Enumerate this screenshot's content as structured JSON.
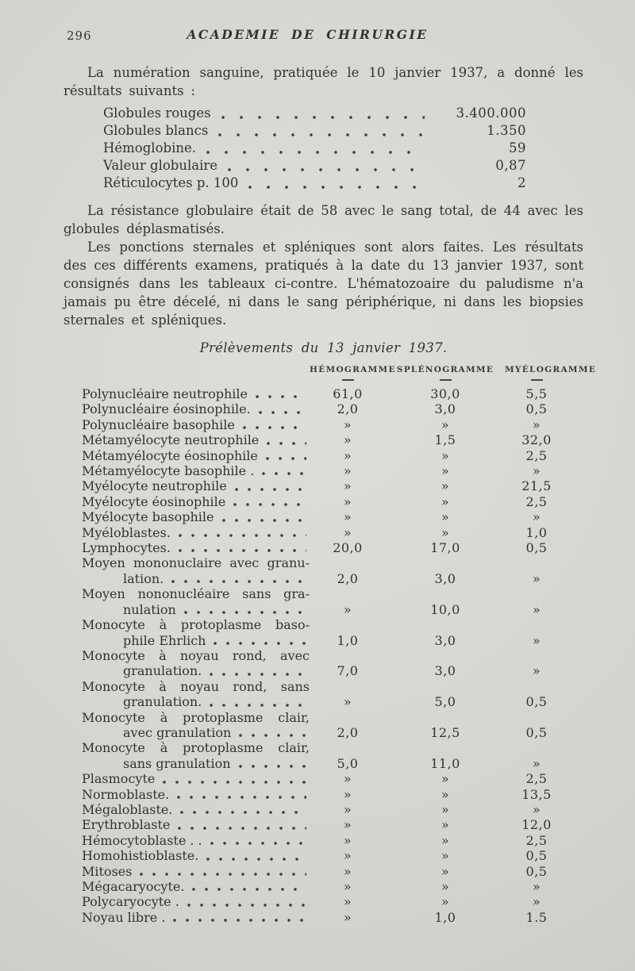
{
  "header": {
    "page_number": "296",
    "journal_title": "ACADEMIE DE CHIRURGIE"
  },
  "paragraphs": {
    "intro": "La numération sanguine, pratiquée le 10 janvier 1937, a donné les résultats suivants :",
    "resistance": "La résistance globulaire était de 58 avec le sang total, de 44 avec les globules déplasmatisés.",
    "punctions": "Les ponctions sternales et spléniques sont alors faites. Les résultats des ces différents examens, pratiqués à la date du 13 janvier 1937, sont consignés dans les tableaux ci-contre. L'hématozoaire du paludisme n'a jamais pu être décelé, ni dans le sang périphérique, ni dans les biopsies sternales et spléniques."
  },
  "blood_counts": {
    "items": [
      {
        "label": "Globules rouges",
        "value": "3.400.000"
      },
      {
        "label": "Globules blancs",
        "value": "1.350"
      },
      {
        "label": "Hémoglobine.",
        "value": "59"
      },
      {
        "label": "Valeur globulaire",
        "value": "0,87"
      },
      {
        "label": "Réticulocytes p. 100",
        "value": "2"
      }
    ]
  },
  "table": {
    "title": "Prélèvements du 13 janvier 1937.",
    "columns": [
      "HÉMOGRAMME",
      "SPLÉNOGRAMME",
      "MYÉLOGRAMME"
    ],
    "empty_mark": "»",
    "rows": [
      {
        "label": "Polynucléaire neutrophile",
        "values": [
          "61,0",
          "30,0",
          "5,5"
        ]
      },
      {
        "label": "Polynucléaire éosinophile.",
        "values": [
          "2,0",
          "3,0",
          "0,5"
        ]
      },
      {
        "label": "Polynucléaire basophile",
        "values": [
          "»",
          "»",
          "»"
        ]
      },
      {
        "label": "Métamyélocyte neutrophile",
        "values": [
          "»",
          "1,5",
          "32,0"
        ]
      },
      {
        "label": "Métamyélocyte éosinophile",
        "values": [
          "»",
          "»",
          "2,5"
        ]
      },
      {
        "label": "Métamyélocyte basophile .",
        "values": [
          "»",
          "»",
          "»"
        ]
      },
      {
        "label": "Myélocyte neutrophile",
        "values": [
          "»",
          "»",
          "21,5"
        ]
      },
      {
        "label": "Myélocyte éosinophile",
        "values": [
          "»",
          "»",
          "2,5"
        ]
      },
      {
        "label": "Myélocyte basophile",
        "values": [
          "»",
          "»",
          "»"
        ]
      },
      {
        "label": "Myéloblastes.",
        "values": [
          "»",
          "»",
          "1,0"
        ]
      },
      {
        "label": "Lymphocytes.",
        "values": [
          "20,0",
          "17,0",
          "0,5"
        ]
      },
      {
        "label": "Moyen mononuclaire avec granu-",
        "label2": "lation.",
        "values": [
          "2,0",
          "3,0",
          "»"
        ]
      },
      {
        "label": "Moyen nononucléaire sans gra-",
        "label2": "nulation",
        "values": [
          "»",
          "10,0",
          "»"
        ]
      },
      {
        "label": "Monocyte à protoplasme baso-",
        "label2": "phile Ehrlich",
        "values": [
          "1,0",
          "3,0",
          "»"
        ]
      },
      {
        "label": "Monocyte à noyau rond, avec",
        "label2": "granulation.",
        "values": [
          "7,0",
          "3,0",
          "»"
        ]
      },
      {
        "label": "Monocyte à noyau rond, sans",
        "label2": "granulation.",
        "values": [
          "»",
          "5,0",
          "0,5"
        ]
      },
      {
        "label": "Monocyte à protoplasme clair,",
        "label2": "avec granulation",
        "values": [
          "2,0",
          "12,5",
          "0,5"
        ]
      },
      {
        "label": "Monocyte à protoplasme clair,",
        "label2": "sans granulation",
        "values": [
          "5,0",
          "11,0",
          "»"
        ]
      },
      {
        "label": "Plasmocyte",
        "values": [
          "»",
          "»",
          "2,5"
        ]
      },
      {
        "label": "Normoblaste.",
        "values": [
          "»",
          "»",
          "13,5"
        ]
      },
      {
        "label": "Mégaloblaste.",
        "values": [
          "»",
          "»",
          "»"
        ]
      },
      {
        "label": "Erythroblaste",
        "values": [
          "»",
          "»",
          "12,0"
        ]
      },
      {
        "label": "Hémocytoblaste . .",
        "values": [
          "»",
          "»",
          "2,5"
        ]
      },
      {
        "label": "Homohistioblaste.",
        "values": [
          "»",
          "»",
          "0,5"
        ]
      },
      {
        "label": "Mitoses",
        "values": [
          "»",
          "»",
          "0,5"
        ]
      },
      {
        "label": "Mégacaryocyte.",
        "values": [
          "»",
          "»",
          "»"
        ]
      },
      {
        "label": "Polycaryocyte .",
        "values": [
          "»",
          "»",
          "»"
        ]
      },
      {
        "label": "Noyau libre .",
        "values": [
          "»",
          "1,0",
          "1.5"
        ]
      }
    ]
  },
  "colors": {
    "paper": "#d6d4cf",
    "ink": "#33322d"
  }
}
